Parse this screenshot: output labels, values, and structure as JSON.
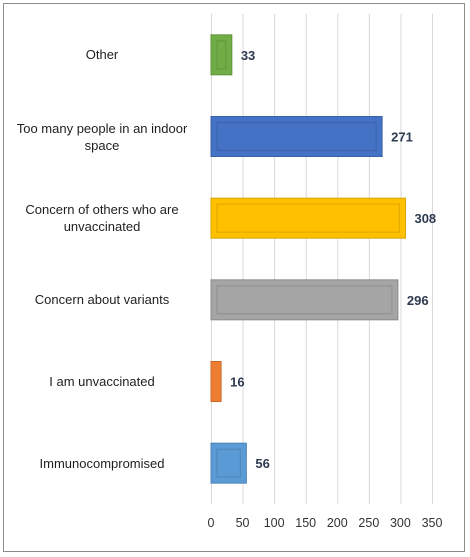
{
  "chart_data": {
    "type": "bar",
    "orientation": "horizontal",
    "categories": [
      "Other",
      "Too many people in an indoor space",
      "Concern of others who are unvaccinated",
      "Concern about variants",
      "I am unvaccinated",
      "Immunocompromised"
    ],
    "values": [
      33,
      271,
      308,
      296,
      16,
      56
    ],
    "data_labels": [
      "33",
      "271",
      "308",
      "296",
      "16",
      "56"
    ],
    "colors": [
      "#70ad47",
      "#4472c4",
      "#ffc000",
      "#a5a5a5",
      "#ed7d31",
      "#5b9bd5"
    ],
    "xlim": [
      0,
      350
    ],
    "xticks": [
      0,
      50,
      100,
      150,
      200,
      250,
      300,
      350
    ],
    "xtick_labels": [
      "0",
      "50",
      "100",
      "150",
      "200",
      "250",
      "300",
      "350"
    ],
    "grid": "vertical",
    "legend": "none",
    "title": "",
    "xlabel": "",
    "ylabel": ""
  }
}
